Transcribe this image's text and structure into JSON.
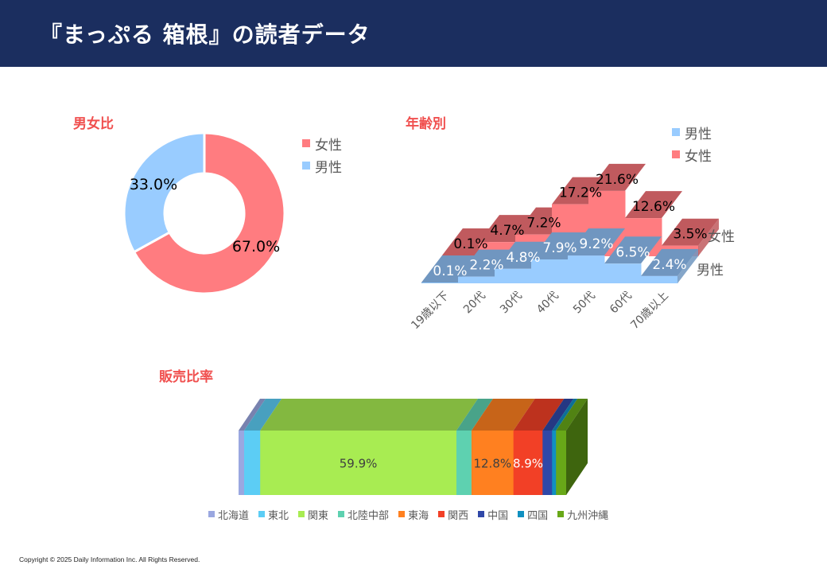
{
  "header": {
    "title": "『まっぷる 箱根』の読者データ"
  },
  "footer": {
    "copyright": "Copyright © 2025 Daily Information Inc. All Rights Reserved."
  },
  "colors": {
    "header_bg": "#1b2e5f",
    "section_title": "#f0504f",
    "female": "#ff7c80",
    "male": "#99ccff"
  },
  "chart_data": [
    {
      "id": "gender",
      "type": "pie",
      "subtype": "donut",
      "title": "男女比",
      "legend_position": "right",
      "slices": [
        {
          "name": "女性",
          "value": 67.0,
          "label": "67.0%",
          "color": "#ff7c80"
        },
        {
          "name": "男性",
          "value": 33.0,
          "label": "33.0%",
          "color": "#99ccff"
        }
      ]
    },
    {
      "id": "age",
      "type": "area",
      "subtype": "3d-stepped",
      "title": "年齢別",
      "legend_position": "top-right",
      "categories": [
        "19歳以下",
        "20代",
        "30代",
        "40代",
        "50代",
        "60代",
        "70歳以上"
      ],
      "series": [
        {
          "name": "男性",
          "color": "#99ccff",
          "top_color": "#7096c0",
          "values": [
            0.1,
            2.2,
            4.8,
            7.9,
            9.2,
            6.5,
            2.4
          ],
          "labels": [
            "0.1%",
            "2.2%",
            "4.8%",
            "7.9%",
            "9.2%",
            "6.5%",
            "2.4%"
          ]
        },
        {
          "name": "女性",
          "color": "#ff7c80",
          "top_color": "#c05a5e",
          "values": [
            0.1,
            4.7,
            7.2,
            17.2,
            21.6,
            12.6,
            3.5
          ],
          "labels": [
            "0.1%",
            "4.7%",
            "7.2%",
            "17.2%",
            "21.6%",
            "12.6%",
            "3.5%"
          ]
        }
      ],
      "depth_axis_labels": [
        "女性",
        "男性"
      ],
      "unit": "%"
    },
    {
      "id": "sales",
      "type": "bar",
      "subtype": "100%-stacked-3d-horizontal",
      "title": "販売比率",
      "legend_position": "bottom",
      "series": [
        {
          "name": "北海道",
          "value": 1.7,
          "label": "",
          "color": "#9aa7e0"
        },
        {
          "name": "東北",
          "value": 4.9,
          "label": "",
          "color": "#5ccdf5"
        },
        {
          "name": "関東",
          "value": 59.9,
          "label": "59.9%",
          "color": "#a8ec52"
        },
        {
          "name": "北陸中部",
          "value": 4.6,
          "label": "",
          "color": "#5ed1b0"
        },
        {
          "name": "東海",
          "value": 12.8,
          "label": "12.8%",
          "color": "#ff8020"
        },
        {
          "name": "関西",
          "value": 8.9,
          "label": "8.9%",
          "color": "#f24026"
        },
        {
          "name": "中国",
          "value": 2.9,
          "label": "",
          "color": "#3048a8"
        },
        {
          "name": "四国",
          "value": 1.2,
          "label": "",
          "color": "#1090c0"
        },
        {
          "name": "九州沖縄",
          "value": 3.1,
          "label": "",
          "color": "#68a818"
        }
      ]
    }
  ]
}
